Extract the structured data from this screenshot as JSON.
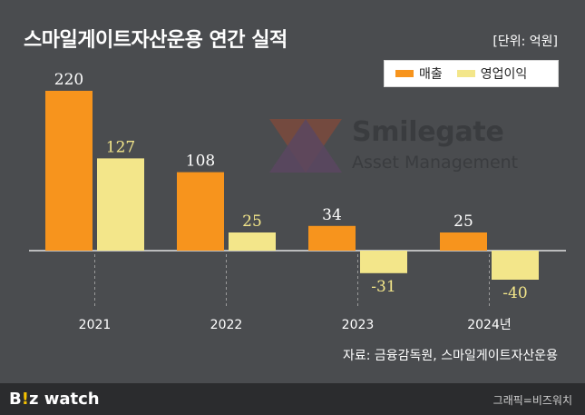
{
  "title": "스마일게이트자산운용 연간 실적",
  "unit": "[단위: 억원]",
  "legend": [
    {
      "label": "매출",
      "color": "#f7941d"
    },
    {
      "label": "영업이익",
      "color": "#f3e68a"
    }
  ],
  "logo": {
    "line1": "Smilegate",
    "line2": "Asset Management",
    "colors": [
      "#7b4a3c",
      "#5a4660"
    ]
  },
  "source": "자료: 금융감독원, 스마일게이트자산운용",
  "footer": {
    "brand_main": "B",
    "brand_excl": "!",
    "brand_rest": "z watch",
    "credit": "그래픽=비즈워치"
  },
  "chart_data": {
    "type": "bar",
    "title": "스마일게이트자산운용 연간 실적",
    "categories": [
      "2021",
      "2022",
      "2023",
      "2024년"
    ],
    "series": [
      {
        "name": "매출",
        "values": [
          220,
          108,
          34,
          25
        ],
        "color": "#f7941d"
      },
      {
        "name": "영업이익",
        "values": [
          127,
          25,
          -31,
          -40
        ],
        "color": "#f3e68a"
      }
    ],
    "ylim": [
      -40,
      220
    ],
    "grid": false,
    "legend": "top-right"
  }
}
